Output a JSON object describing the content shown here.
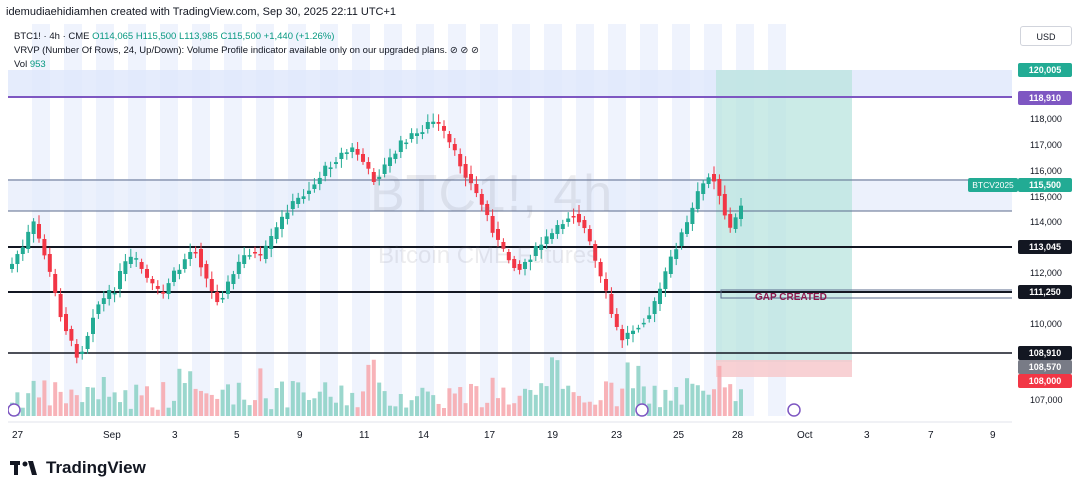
{
  "header": {
    "created_by": "idemudiaehidiamhen created with TradingView.com, Sep 30, 2025 22:11 UTC+1"
  },
  "legend": {
    "symbol": "BTC1! · 4h · CME",
    "open": "O114,065",
    "high": "H115,500",
    "low": "L113,985",
    "close": "C115,500",
    "change": "+1,440 (+1.26%)",
    "vrvp": "VRVP (Number Of Rows, 24, Up/Down): Volume Profile indicator available only on our upgraded plans.",
    "vrvp_icons": "⊘ ⊘ ⊘",
    "vol_label": "Vol",
    "vol_value": "953"
  },
  "currency_button": "USD",
  "watermark": {
    "symbol": "BTC1!, 4h",
    "name": "Bitcoin CME Futures"
  },
  "price_axis": {
    "ticks": [
      "118,000",
      "117,000",
      "116,000",
      "115,000",
      "114,000",
      "112,000",
      "110,000",
      "107,000"
    ]
  },
  "price_tags": [
    {
      "label": "120,005",
      "color": "#22ab94"
    },
    {
      "label": "118,910",
      "color": "#7e57c2"
    },
    {
      "label": "115,500",
      "color": "#22ab94"
    },
    {
      "label": "113,045",
      "color": "#131722"
    },
    {
      "label": "111,250",
      "color": "#131722"
    },
    {
      "label": "108,910",
      "color": "#131722"
    },
    {
      "label": "108,570",
      "color": "#787b86"
    },
    {
      "label": "108,000",
      "color": "#f23645"
    }
  ],
  "btcv_tag": "BTCV2025",
  "gap_label": "GAP CREATED",
  "time_axis": [
    "27",
    "Sep",
    "3",
    "5",
    "9",
    "11",
    "14",
    "17",
    "19",
    "23",
    "25",
    "28",
    "Oct",
    "3",
    "7",
    "9"
  ],
  "footer": {
    "brand": "TradingView"
  },
  "colors": {
    "up": "#22ab94",
    "down": "#f23645",
    "accent": "#2962ff"
  }
}
